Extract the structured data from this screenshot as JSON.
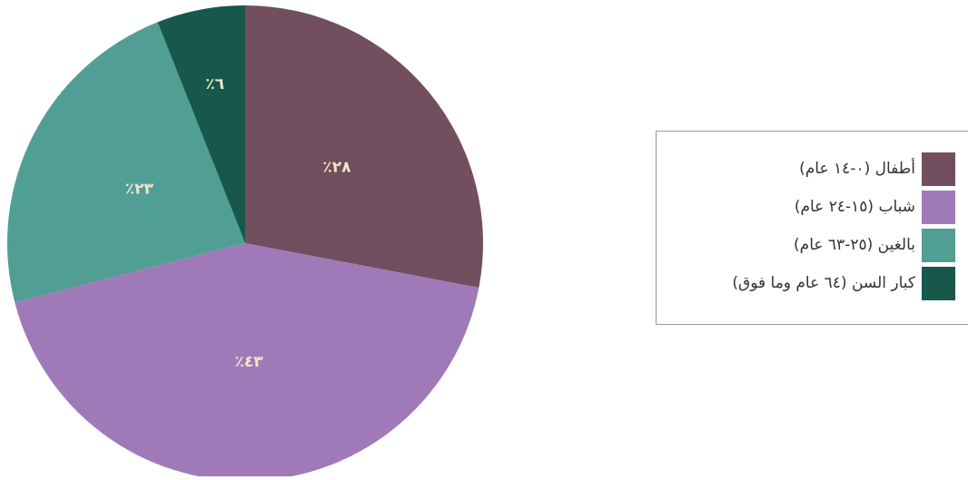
{
  "chart_data": {
    "type": "pie",
    "categories": [
      "أطفال (٠-١٤ عام)",
      "شباب (١٥-٢٤ عام)",
      "بالغين (٢٥-٦٣ عام)",
      "كبار السن (٦٤ عام وما فوق)"
    ],
    "values": [
      28,
      43,
      23,
      6
    ],
    "value_labels": [
      "٪٢٨",
      "٪٤٣",
      "٪٢٣",
      "٪٦"
    ],
    "colors": [
      "#714f5e",
      "#a07ab8",
      "#519e95",
      "#18584c"
    ],
    "legend": "right"
  }
}
